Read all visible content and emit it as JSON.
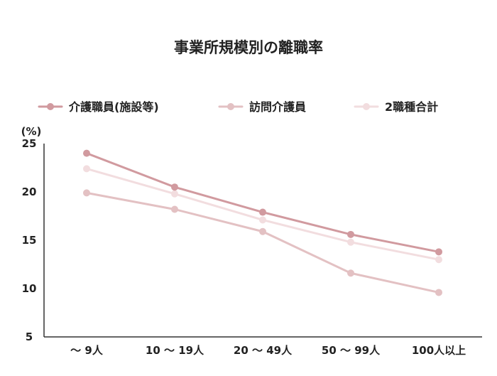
{
  "chart_data": {
    "type": "line",
    "title": "事業所規模別の離職率",
    "ylabel": "(%)",
    "xlabel": "",
    "categories": [
      "〜 9人",
      "10 〜 19人",
      "20 〜 49人",
      "50 〜 99人",
      "100人以上"
    ],
    "yticks": [
      "25",
      "20",
      "15",
      "10",
      "5"
    ],
    "ylim": [
      5,
      25
    ],
    "grid": false,
    "legend_position": "top",
    "series": [
      {
        "name": "介護職員(施設等)",
        "color": "#d19a9f",
        "values": [
          24.0,
          20.5,
          17.9,
          15.6,
          13.8
        ]
      },
      {
        "name": "訪問介護員",
        "color": "#e3c1c3",
        "values": [
          19.9,
          18.2,
          15.9,
          11.6,
          9.6
        ]
      },
      {
        "name": "2職種合計",
        "color": "#f2dddf",
        "values": [
          22.4,
          19.8,
          17.1,
          14.8,
          13.0
        ]
      }
    ]
  }
}
